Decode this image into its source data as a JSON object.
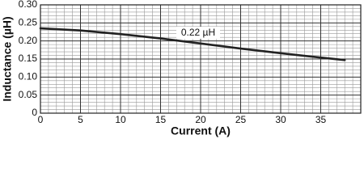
{
  "chart_data": {
    "type": "line",
    "x": [
      0,
      5,
      10,
      15,
      20,
      25,
      30,
      35,
      38
    ],
    "series": [
      {
        "name": "0.22 µH",
        "color": "#222222",
        "values": [
          0.235,
          0.229,
          0.219,
          0.207,
          0.193,
          0.179,
          0.166,
          0.154,
          0.147
        ]
      }
    ],
    "xlabel": "Current (A)",
    "ylabel": "Inductance (µH)",
    "xlim": [
      0,
      40
    ],
    "xticks": [
      0,
      5,
      10,
      15,
      20,
      25,
      30,
      35
    ],
    "ylim": [
      0,
      0.3
    ],
    "yticks": [
      0,
      0.05,
      {
        "value": 0.1,
        "label": "0.10"
      },
      0.15,
      {
        "value": 0.2,
        "label": "0.20"
      },
      0.25,
      {
        "value": 0.3,
        "label": "0.30"
      }
    ],
    "grid": true,
    "minor_grid": true
  }
}
